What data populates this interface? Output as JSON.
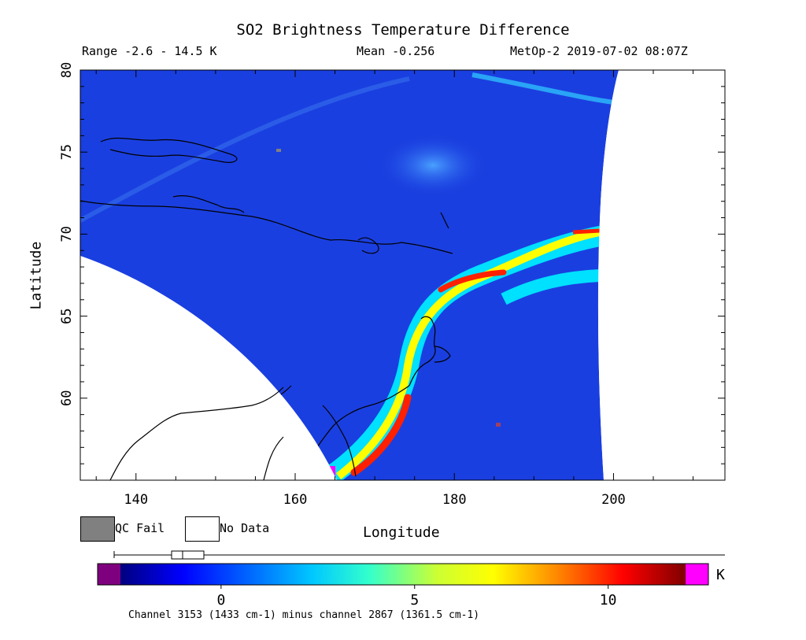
{
  "header": {
    "title": "SO2 Brightness Temperature Difference",
    "range": "Range -2.6 - 14.5 K",
    "mean": "Mean -0.256",
    "satellite_time": "MetOp-2 2019-07-02 08:07Z"
  },
  "map": {
    "xlabel": "Longitude",
    "ylabel": "Latitude",
    "x_ticks": [
      "140",
      "160",
      "180",
      "200"
    ],
    "y_ticks": [
      "80",
      "75",
      "70",
      "65",
      "60"
    ],
    "lon_range": [
      133,
      214
    ],
    "lat_range": [
      55,
      80
    ],
    "background_color": "#1a3fe0",
    "plume_colors": [
      "#00e0ff",
      "#ffff00",
      "#ff2000",
      "#ff00ff"
    ]
  },
  "legend": {
    "qc_fail": "QC Fail",
    "no_data": "No Data",
    "qc_fail_color": "#808080",
    "no_data_color": "#ffffff"
  },
  "colorbar": {
    "ticks": [
      "0",
      "5",
      "10"
    ],
    "unit": "K",
    "caption": "Channel 3153 (1433 cm-1) minus channel 2867 (1361.5 cm-1)",
    "under_color": "#7f007f",
    "over_color": "#ff00ff",
    "range": [
      -2.6,
      12
    ]
  }
}
